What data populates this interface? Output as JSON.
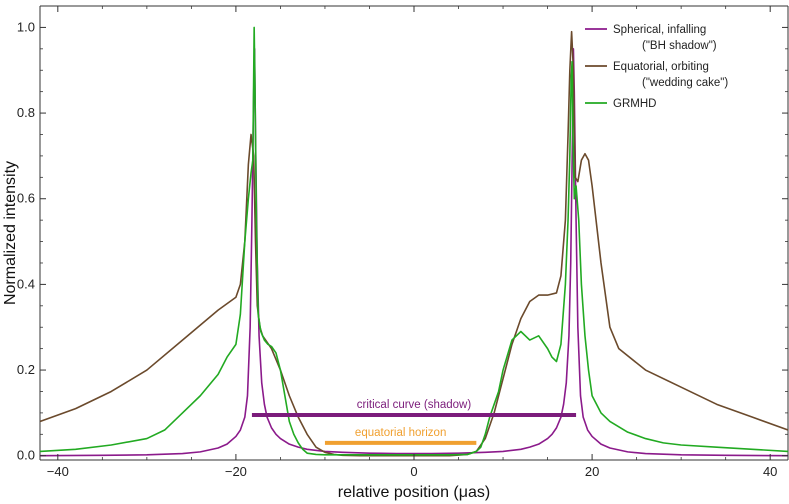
{
  "chart_data": {
    "type": "line",
    "xlabel": "relative position (μas)",
    "ylabel": "Normalized intensity",
    "xlim": [
      -42,
      42
    ],
    "ylim": [
      -0.01,
      1.05
    ],
    "xticks": [
      -40,
      -20,
      0,
      20,
      40
    ],
    "yticks": [
      0.0,
      0.2,
      0.4,
      0.6,
      0.8,
      1.0
    ],
    "ytick_labels": [
      "0.0",
      "0.2",
      "0.4",
      "0.6",
      "0.8",
      "1.0"
    ],
    "grid": false,
    "legend_position": "top-right",
    "legend": [
      {
        "series": "spherical",
        "line1": "Spherical, infalling",
        "line2": "(\"BH shadow\")"
      },
      {
        "series": "equatorial",
        "line1": "Equatorial, orbiting",
        "line2": "(\"wedding cake\")"
      },
      {
        "series": "grmhd",
        "line1": "GRMHD",
        "line2": ""
      }
    ],
    "series": [
      {
        "name": "Spherical, infalling (\"BH shadow\")",
        "key": "spherical",
        "color": "#8B1A8B",
        "x": [
          -42,
          -35,
          -30,
          -26,
          -24,
          -22,
          -21,
          -20,
          -19.5,
          -19,
          -18.7,
          -18.4,
          -18.2,
          -18.0,
          -17.9,
          -17.8,
          -17.6,
          -17.4,
          -17.1,
          -16.8,
          -16.5,
          -16,
          -15.5,
          -15,
          -14,
          -13,
          -12,
          -10,
          -8,
          -5,
          -2,
          0,
          2,
          5,
          8,
          10,
          12,
          13,
          14,
          15,
          15.5,
          16,
          16.5,
          16.8,
          17.1,
          17.4,
          17.6,
          17.8,
          17.9,
          18.0,
          18.2,
          18.4,
          18.7,
          19,
          19.5,
          20,
          21,
          22,
          24,
          26,
          30,
          35,
          42
        ],
        "y": [
          0.0,
          0.001,
          0.002,
          0.005,
          0.009,
          0.018,
          0.027,
          0.045,
          0.06,
          0.09,
          0.14,
          0.3,
          0.55,
          0.85,
          0.95,
          0.75,
          0.45,
          0.28,
          0.17,
          0.12,
          0.09,
          0.065,
          0.05,
          0.04,
          0.027,
          0.02,
          0.015,
          0.01,
          0.008,
          0.006,
          0.005,
          0.005,
          0.005,
          0.006,
          0.008,
          0.01,
          0.015,
          0.02,
          0.027,
          0.04,
          0.05,
          0.065,
          0.09,
          0.12,
          0.17,
          0.28,
          0.45,
          0.75,
          0.95,
          0.85,
          0.55,
          0.3,
          0.14,
          0.09,
          0.06,
          0.045,
          0.027,
          0.018,
          0.009,
          0.005,
          0.002,
          0.001,
          0.0
        ]
      },
      {
        "name": "Equatorial, orbiting (\"wedding cake\")",
        "key": "equatorial",
        "color": "#6B4A2C",
        "x": [
          -42,
          -38,
          -34,
          -30,
          -26,
          -22,
          -20,
          -19.5,
          -19,
          -18.6,
          -18.3,
          -18.0,
          -17.8,
          -17.6,
          -17.3,
          -17,
          -16.5,
          -16,
          -15,
          -14,
          -13,
          -12,
          -11,
          -10,
          -9,
          -8,
          -6,
          0,
          4,
          6,
          7,
          8,
          9,
          10,
          11,
          12,
          13,
          14,
          15,
          16,
          16.5,
          17,
          17.3,
          17.5,
          17.7,
          17.9,
          18.1,
          18.4,
          18.8,
          19.2,
          19.6,
          20,
          21,
          22,
          23,
          26,
          30,
          34,
          38,
          42
        ],
        "y": [
          0.08,
          0.11,
          0.15,
          0.2,
          0.27,
          0.34,
          0.37,
          0.4,
          0.5,
          0.68,
          0.75,
          0.7,
          0.5,
          0.35,
          0.3,
          0.28,
          0.265,
          0.25,
          0.2,
          0.14,
          0.09,
          0.05,
          0.02,
          0.008,
          0.003,
          0.001,
          0.0,
          0.0,
          0.0,
          0.003,
          0.01,
          0.04,
          0.1,
          0.18,
          0.26,
          0.32,
          0.36,
          0.375,
          0.375,
          0.38,
          0.42,
          0.55,
          0.75,
          0.9,
          0.99,
          0.9,
          0.65,
          0.64,
          0.69,
          0.705,
          0.69,
          0.63,
          0.45,
          0.3,
          0.25,
          0.2,
          0.16,
          0.12,
          0.09,
          0.06
        ]
      },
      {
        "name": "GRMHD",
        "key": "grmhd",
        "color": "#22AA22",
        "x": [
          -42,
          -38,
          -34,
          -30,
          -28,
          -26,
          -24,
          -22,
          -21,
          -20,
          -19.5,
          -19,
          -18.6,
          -18.3,
          -18.1,
          -17.95,
          -17.85,
          -17.7,
          -17.5,
          -17.2,
          -16.8,
          -16.4,
          -16,
          -15.5,
          -15,
          -14.5,
          -14,
          -13.5,
          -13,
          -12.5,
          -12,
          -11,
          -10,
          -9,
          -8,
          -6,
          0,
          4,
          6,
          7,
          7.5,
          8,
          8.5,
          9,
          9.5,
          10,
          11,
          11.5,
          12,
          13,
          14,
          15,
          15.5,
          16,
          16.5,
          17,
          17.3,
          17.5,
          17.65,
          17.75,
          17.85,
          18.0,
          18.2,
          18.5,
          18.8,
          19.2,
          19.6,
          20,
          21,
          22,
          24,
          26,
          28,
          30,
          34,
          38,
          42
        ],
        "y": [
          0.01,
          0.015,
          0.025,
          0.04,
          0.06,
          0.1,
          0.14,
          0.19,
          0.23,
          0.26,
          0.33,
          0.5,
          0.6,
          0.66,
          0.69,
          1.0,
          0.85,
          0.55,
          0.33,
          0.29,
          0.27,
          0.26,
          0.255,
          0.24,
          0.2,
          0.14,
          0.08,
          0.05,
          0.03,
          0.015,
          0.006,
          0.003,
          0.002,
          0.002,
          0.002,
          0.002,
          0.002,
          0.002,
          0.003,
          0.01,
          0.02,
          0.05,
          0.09,
          0.12,
          0.15,
          0.2,
          0.27,
          0.28,
          0.29,
          0.27,
          0.28,
          0.25,
          0.23,
          0.22,
          0.26,
          0.4,
          0.55,
          0.7,
          0.88,
          0.92,
          0.75,
          0.6,
          0.63,
          0.55,
          0.4,
          0.28,
          0.2,
          0.14,
          0.1,
          0.08,
          0.055,
          0.04,
          0.03,
          0.025,
          0.02,
          0.015,
          0.01
        ]
      }
    ],
    "annotations": [
      {
        "key": "critical-curve",
        "text": "critical curve (shadow)",
        "x_start": -18.2,
        "x_end": 18.2,
        "y": 0.095,
        "color": "#7B1C7B"
      },
      {
        "key": "equatorial-horizon",
        "text": "equatorial horizon",
        "x_start": -10,
        "x_end": 7,
        "y": 0.03,
        "color": "#F0A030"
      }
    ]
  }
}
